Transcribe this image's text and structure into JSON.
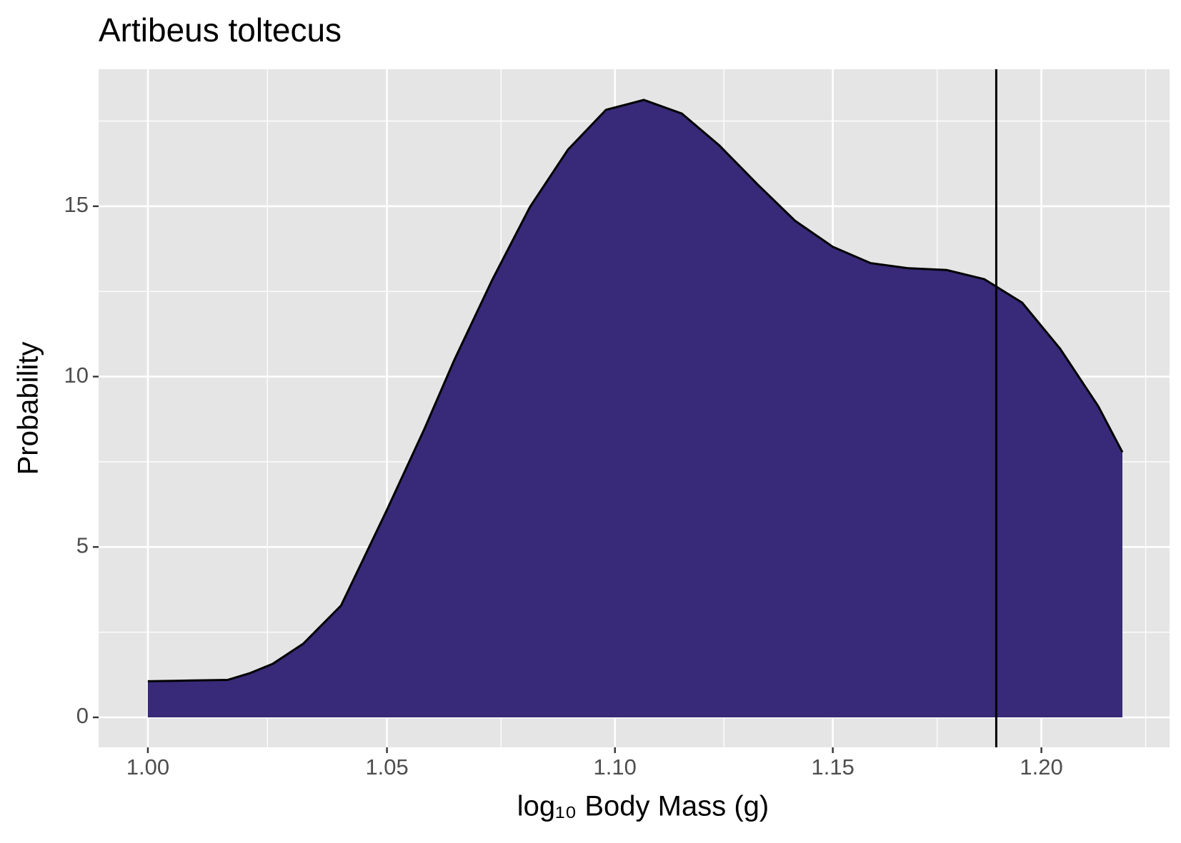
{
  "chart_data": {
    "type": "area",
    "title": "Artibeus toltecus",
    "xlabel": "log₁₀ Body Mass (g)",
    "ylabel": "Probability",
    "xscale": "log",
    "x": [
      1.0,
      1.0085,
      1.0164,
      1.0211,
      1.0258,
      1.0322,
      1.0402,
      1.05,
      1.058,
      1.0645,
      1.0728,
      1.0811,
      1.0895,
      1.098,
      1.1065,
      1.1151,
      1.1237,
      1.1324,
      1.1412,
      1.15,
      1.1589,
      1.1679,
      1.177,
      1.1861,
      1.1953,
      1.2046,
      1.214,
      1.22
    ],
    "series": [
      {
        "color": "#382a78",
        "values": [
          1.06,
          1.08,
          1.1,
          1.3,
          1.57,
          2.16,
          3.28,
          6.09,
          8.45,
          10.48,
          12.84,
          14.98,
          16.66,
          17.83,
          18.12,
          17.72,
          16.78,
          15.65,
          14.57,
          13.81,
          13.33,
          13.18,
          13.13,
          12.86,
          12.17,
          10.82,
          9.13,
          7.78
        ]
      }
    ],
    "vline": 1.189,
    "xlim": [
      0.99,
      1.2318
    ],
    "xticks": [
      {
        "value": 1.0,
        "label": "1.00"
      },
      1.05,
      {
        "value": 1.1,
        "label": "1.10"
      },
      1.15,
      {
        "value": 1.2,
        "label": "1.20"
      }
    ],
    "ylim": [
      -0.88,
      19.02
    ],
    "yticks": [
      0,
      5,
      10,
      15
    ],
    "grid": true
  }
}
